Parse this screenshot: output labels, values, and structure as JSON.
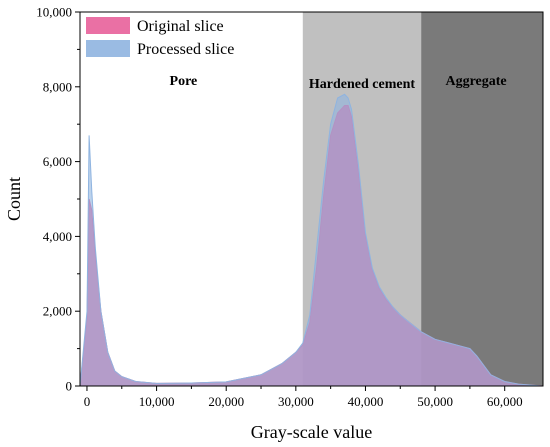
{
  "chart_data": {
    "type": "area",
    "xlabel": "Gray-scale value",
    "ylabel": "Count",
    "xlim": [
      -1000,
      65500
    ],
    "ylim": [
      0,
      10000
    ],
    "x_ticks": [
      0,
      10000,
      20000,
      30000,
      40000,
      50000,
      60000
    ],
    "x_tick_labels": [
      "0",
      "10,000",
      "20,000",
      "30,000",
      "40,000",
      "50,000",
      "60,000"
    ],
    "y_ticks": [
      0,
      2000,
      4000,
      6000,
      8000,
      10000
    ],
    "y_tick_labels": [
      "0",
      "2,000",
      "4,000",
      "6,000",
      "8,000",
      "10,000"
    ],
    "grid": false,
    "legend_position": "top-left",
    "regions": [
      {
        "name": "Pore",
        "x_start": -1000,
        "x_end": 31000,
        "color": "#ffffff"
      },
      {
        "name": "Hardened cement",
        "x_start": 31000,
        "x_end": 48000,
        "color": "#c0c0c0"
      },
      {
        "name": "Aggregate",
        "x_start": 48000,
        "x_end": 65500,
        "color": "#7a7a7a"
      }
    ],
    "series": [
      {
        "name": "Original slice",
        "color": "#e8609a",
        "x": [
          -1000,
          0,
          300,
          700,
          1200,
          2000,
          3000,
          4000,
          5000,
          7000,
          10000,
          15000,
          20000,
          25000,
          28000,
          30000,
          31000,
          32000,
          33000,
          34000,
          35000,
          36000,
          37000,
          37500,
          38000,
          39000,
          40000,
          41000,
          42000,
          43000,
          44000,
          45000,
          46000,
          47000,
          48000,
          50000,
          52000,
          54000,
          55000,
          56000,
          57000,
          58000,
          60000,
          62000,
          64000,
          65500
        ],
        "y": [
          0,
          1800,
          5000,
          4700,
          3500,
          2000,
          900,
          400,
          250,
          120,
          70,
          80,
          110,
          300,
          600,
          900,
          1100,
          1700,
          3200,
          5100,
          6700,
          7300,
          7500,
          7500,
          7200,
          5700,
          4000,
          3100,
          2600,
          2300,
          2100,
          1900,
          1750,
          1600,
          1450,
          1250,
          1150,
          1050,
          1000,
          800,
          550,
          300,
          120,
          50,
          20,
          0
        ]
      },
      {
        "name": "Processed slice",
        "color": "#8fb4e0",
        "x": [
          -1000,
          0,
          300,
          700,
          1200,
          2000,
          3000,
          4000,
          5000,
          7000,
          10000,
          15000,
          20000,
          25000,
          28000,
          30000,
          31000,
          32000,
          33000,
          34000,
          35000,
          36000,
          37000,
          37500,
          38000,
          39000,
          40000,
          41000,
          42000,
          43000,
          44000,
          45000,
          46000,
          47000,
          48000,
          50000,
          52000,
          54000,
          55000,
          56000,
          57000,
          58000,
          60000,
          62000,
          64000,
          65500
        ],
        "y": [
          0,
          2000,
          6700,
          5200,
          3700,
          2000,
          900,
          400,
          250,
          120,
          70,
          80,
          110,
          300,
          600,
          900,
          1150,
          1900,
          3700,
          5500,
          7000,
          7700,
          7800,
          7700,
          7400,
          5900,
          4100,
          3150,
          2650,
          2350,
          2100,
          1900,
          1750,
          1600,
          1450,
          1250,
          1150,
          1050,
          1000,
          800,
          550,
          300,
          120,
          50,
          20,
          0
        ]
      }
    ]
  }
}
